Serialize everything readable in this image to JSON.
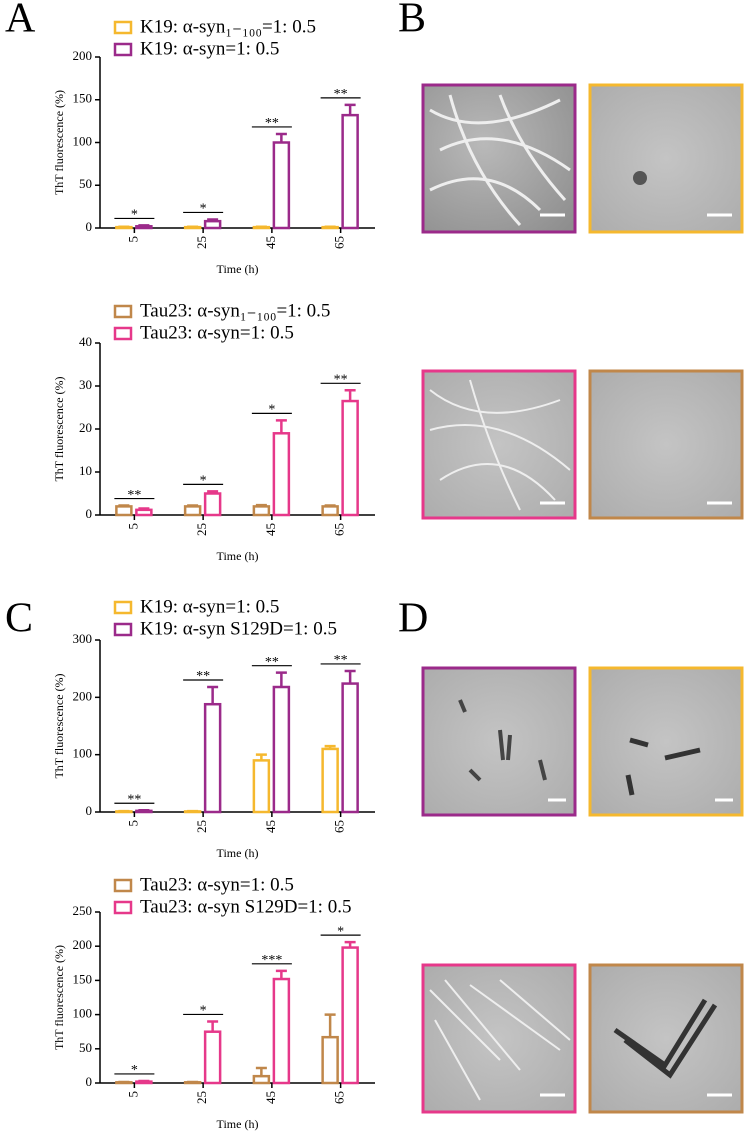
{
  "panel_labels": [
    "A",
    "B",
    "C",
    "D"
  ],
  "chart_data": [
    {
      "type": "bar",
      "xlabel": "Time (h)",
      "ylabel": "ThT fluorescence (%)",
      "categories": [
        "5",
        "25",
        "45",
        "65"
      ],
      "series": [
        {
          "name": "K19: α-syn₁₋₁₀₀=1: 0.5",
          "color": "#f5b82e",
          "values": [
            1,
            1,
            1,
            1
          ],
          "errors": [
            0.5,
            0.5,
            0.5,
            0.5
          ]
        },
        {
          "name": "K19: α-syn=1: 0.5",
          "color": "#9b2a8a",
          "values": [
            2,
            8,
            100,
            132
          ],
          "errors": [
            1,
            2,
            10,
            12
          ]
        }
      ],
      "annotations": [
        "*",
        "*",
        "**",
        "**"
      ],
      "ylim": [
        0,
        200
      ],
      "yticks": [
        0,
        50,
        100,
        150,
        200
      ]
    },
    {
      "type": "bar",
      "xlabel": "Time (h)",
      "ylabel": "ThT fluorescence (%)",
      "categories": [
        "5",
        "25",
        "45",
        "65"
      ],
      "series": [
        {
          "name": "Tau23: α-syn₁₋₁₀₀=1: 0.5",
          "color": "#c0874a",
          "values": [
            2,
            2,
            2,
            2
          ],
          "errors": [
            0.2,
            0.2,
            0.3,
            0.2
          ]
        },
        {
          "name": "Tau23: α-syn=1: 0.5",
          "color": "#e6388a",
          "values": [
            1.2,
            5,
            19,
            26.5
          ],
          "errors": [
            0.3,
            0.5,
            3,
            2.5
          ]
        }
      ],
      "annotations": [
        "**",
        "*",
        "*",
        "**"
      ],
      "ylim": [
        0,
        40
      ],
      "yticks": [
        0,
        10,
        20,
        30,
        40
      ]
    },
    {
      "type": "bar",
      "xlabel": "Time (h)",
      "ylabel": "ThT fluorescence (%)",
      "categories": [
        "5",
        "25",
        "45",
        "65"
      ],
      "series": [
        {
          "name": "K19: α-syn=1: 0.5",
          "color": "#f5b82e",
          "values": [
            1,
            1,
            90,
            110
          ],
          "errors": [
            0.5,
            0.5,
            10,
            5
          ]
        },
        {
          "name": "K19: α-syn S129D=1: 0.5",
          "color": "#9b2a8a",
          "values": [
            2,
            188,
            218,
            224
          ],
          "errors": [
            1,
            30,
            25,
            22
          ]
        }
      ],
      "annotations": [
        "**",
        "**",
        "**",
        "**"
      ],
      "ylim": [
        0,
        300
      ],
      "yticks": [
        0,
        100,
        200,
        300
      ]
    },
    {
      "type": "bar",
      "xlabel": "Time (h)",
      "ylabel": "ThT fluorescence (%)",
      "categories": [
        "5",
        "25",
        "45",
        "65"
      ],
      "series": [
        {
          "name": "Tau23: α-syn=1: 0.5",
          "color": "#c0874a",
          "values": [
            1,
            1,
            10,
            67
          ],
          "errors": [
            0.5,
            0.5,
            12,
            33
          ]
        },
        {
          "name": "Tau23: α-syn S129D=1: 0.5",
          "color": "#e6388a",
          "values": [
            2,
            75,
            152,
            198
          ],
          "errors": [
            1,
            15,
            12,
            8
          ]
        }
      ],
      "annotations": [
        "*",
        "*",
        "***",
        "*"
      ],
      "ylim": [
        0,
        250
      ],
      "yticks": [
        0,
        50,
        100,
        150,
        200,
        250
      ]
    }
  ]
}
